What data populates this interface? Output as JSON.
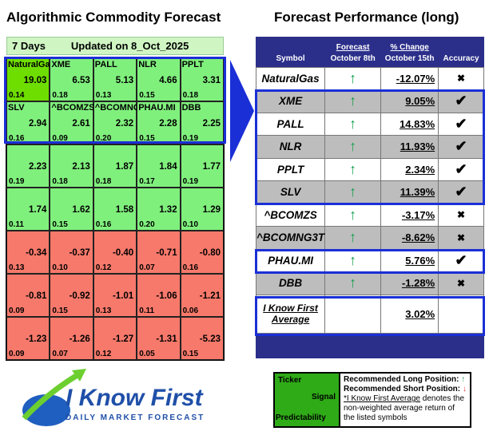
{
  "left": {
    "title": "Algorithmic Commodity Forecast",
    "period": "7 Days",
    "updated": "Updated on 8_Oct_2025",
    "cells": [
      {
        "t": "NaturalGas",
        "s": "19.03",
        "p": "0.14",
        "c": "top"
      },
      {
        "t": "XME",
        "s": "6.53",
        "p": "0.18",
        "c": "g"
      },
      {
        "t": "PALL",
        "s": "5.13",
        "p": "0.13",
        "c": "g"
      },
      {
        "t": "NLR",
        "s": "4.66",
        "p": "0.15",
        "c": "g"
      },
      {
        "t": "PPLT",
        "s": "3.31",
        "p": "0.18",
        "c": "g"
      },
      {
        "t": "SLV",
        "s": "2.94",
        "p": "0.16",
        "c": "g"
      },
      {
        "t": "^BCOMZS",
        "s": "2.61",
        "p": "0.09",
        "c": "g"
      },
      {
        "t": "^BCOMNG3T",
        "s": "2.32",
        "p": "0.20",
        "c": "g"
      },
      {
        "t": "PHAU.MI",
        "s": "2.28",
        "p": "0.15",
        "c": "g"
      },
      {
        "t": "DBB",
        "s": "2.25",
        "p": "0.19",
        "c": "g"
      },
      {
        "t": "",
        "s": "2.23",
        "p": "0.19",
        "c": "g"
      },
      {
        "t": "",
        "s": "2.13",
        "p": "0.18",
        "c": "g"
      },
      {
        "t": "",
        "s": "1.87",
        "p": "0.18",
        "c": "g"
      },
      {
        "t": "",
        "s": "1.84",
        "p": "0.17",
        "c": "g"
      },
      {
        "t": "",
        "s": "1.77",
        "p": "0.19",
        "c": "g"
      },
      {
        "t": "",
        "s": "1.74",
        "p": "0.11",
        "c": "g"
      },
      {
        "t": "",
        "s": "1.62",
        "p": "0.15",
        "c": "g"
      },
      {
        "t": "",
        "s": "1.58",
        "p": "0.16",
        "c": "g"
      },
      {
        "t": "",
        "s": "1.32",
        "p": "0.20",
        "c": "g"
      },
      {
        "t": "",
        "s": "1.29",
        "p": "0.10",
        "c": "g"
      },
      {
        "t": "",
        "s": "-0.34",
        "p": "0.13",
        "c": "r"
      },
      {
        "t": "",
        "s": "-0.37",
        "p": "0.10",
        "c": "r"
      },
      {
        "t": "",
        "s": "-0.40",
        "p": "0.12",
        "c": "r"
      },
      {
        "t": "",
        "s": "-0.71",
        "p": "0.07",
        "c": "r"
      },
      {
        "t": "",
        "s": "-0.80",
        "p": "0.16",
        "c": "r"
      },
      {
        "t": "",
        "s": "-0.81",
        "p": "0.09",
        "c": "r"
      },
      {
        "t": "",
        "s": "-0.92",
        "p": "0.15",
        "c": "r"
      },
      {
        "t": "",
        "s": "-1.01",
        "p": "0.13",
        "c": "r"
      },
      {
        "t": "",
        "s": "-1.06",
        "p": "0.11",
        "c": "r"
      },
      {
        "t": "",
        "s": "-1.21",
        "p": "0.06",
        "c": "r"
      },
      {
        "t": "",
        "s": "-1.23",
        "p": "0.09",
        "c": "r"
      },
      {
        "t": "",
        "s": "-1.26",
        "p": "0.07",
        "c": "r"
      },
      {
        "t": "",
        "s": "-1.27",
        "p": "0.12",
        "c": "r"
      },
      {
        "t": "",
        "s": "-1.31",
        "p": "0.05",
        "c": "r"
      },
      {
        "t": "",
        "s": "-5.23",
        "p": "0.15",
        "c": "r"
      }
    ]
  },
  "right": {
    "title": "Forecast Performance (long)",
    "headers": {
      "symbol": "Symbol",
      "forecast": "Forecast",
      "forecast_date": "October 8th",
      "change": "% Change",
      "change_date": "October 15th",
      "accuracy": "Accuracy"
    },
    "rows": [
      {
        "symbol": "NaturalGas",
        "signal": "↑",
        "change": "-12.07%",
        "acc": "✖"
      },
      {
        "symbol": "XME",
        "signal": "↑",
        "change": "9.05%",
        "acc": "✔"
      },
      {
        "symbol": "PALL",
        "signal": "↑",
        "change": "14.83%",
        "acc": "✔"
      },
      {
        "symbol": "NLR",
        "signal": "↑",
        "change": "11.93%",
        "acc": "✔"
      },
      {
        "symbol": "PPLT",
        "signal": "↑",
        "change": "2.34%",
        "acc": "✔"
      },
      {
        "symbol": "SLV",
        "signal": "↑",
        "change": "11.39%",
        "acc": "✔"
      },
      {
        "symbol": "^BCOMZS",
        "signal": "↑",
        "change": "-3.17%",
        "acc": "✖"
      },
      {
        "symbol": "^BCOMNG3T",
        "signal": "↑",
        "change": "-8.62%",
        "acc": "✖"
      },
      {
        "symbol": "PHAU.MI",
        "signal": "↑",
        "change": "5.76%",
        "acc": "✔"
      },
      {
        "symbol": "DBB",
        "signal": "↑",
        "change": "-1.28%",
        "acc": "✖"
      }
    ],
    "average": {
      "label": "I Know First Average",
      "value": "3.02%"
    }
  },
  "logo": {
    "name": "I Know First",
    "tagline": "Daily Market Forecast"
  },
  "legend": {
    "ticker": "Ticker",
    "signal": "Signal",
    "predictability": "Predictability",
    "long": "Recommended Long Position:",
    "short": "Recommended Short Position:",
    "up": "↑",
    "down": "↓",
    "note_link": "*I Know First Average",
    "note": " denotes the non-weighted average return of the listed symbols"
  }
}
